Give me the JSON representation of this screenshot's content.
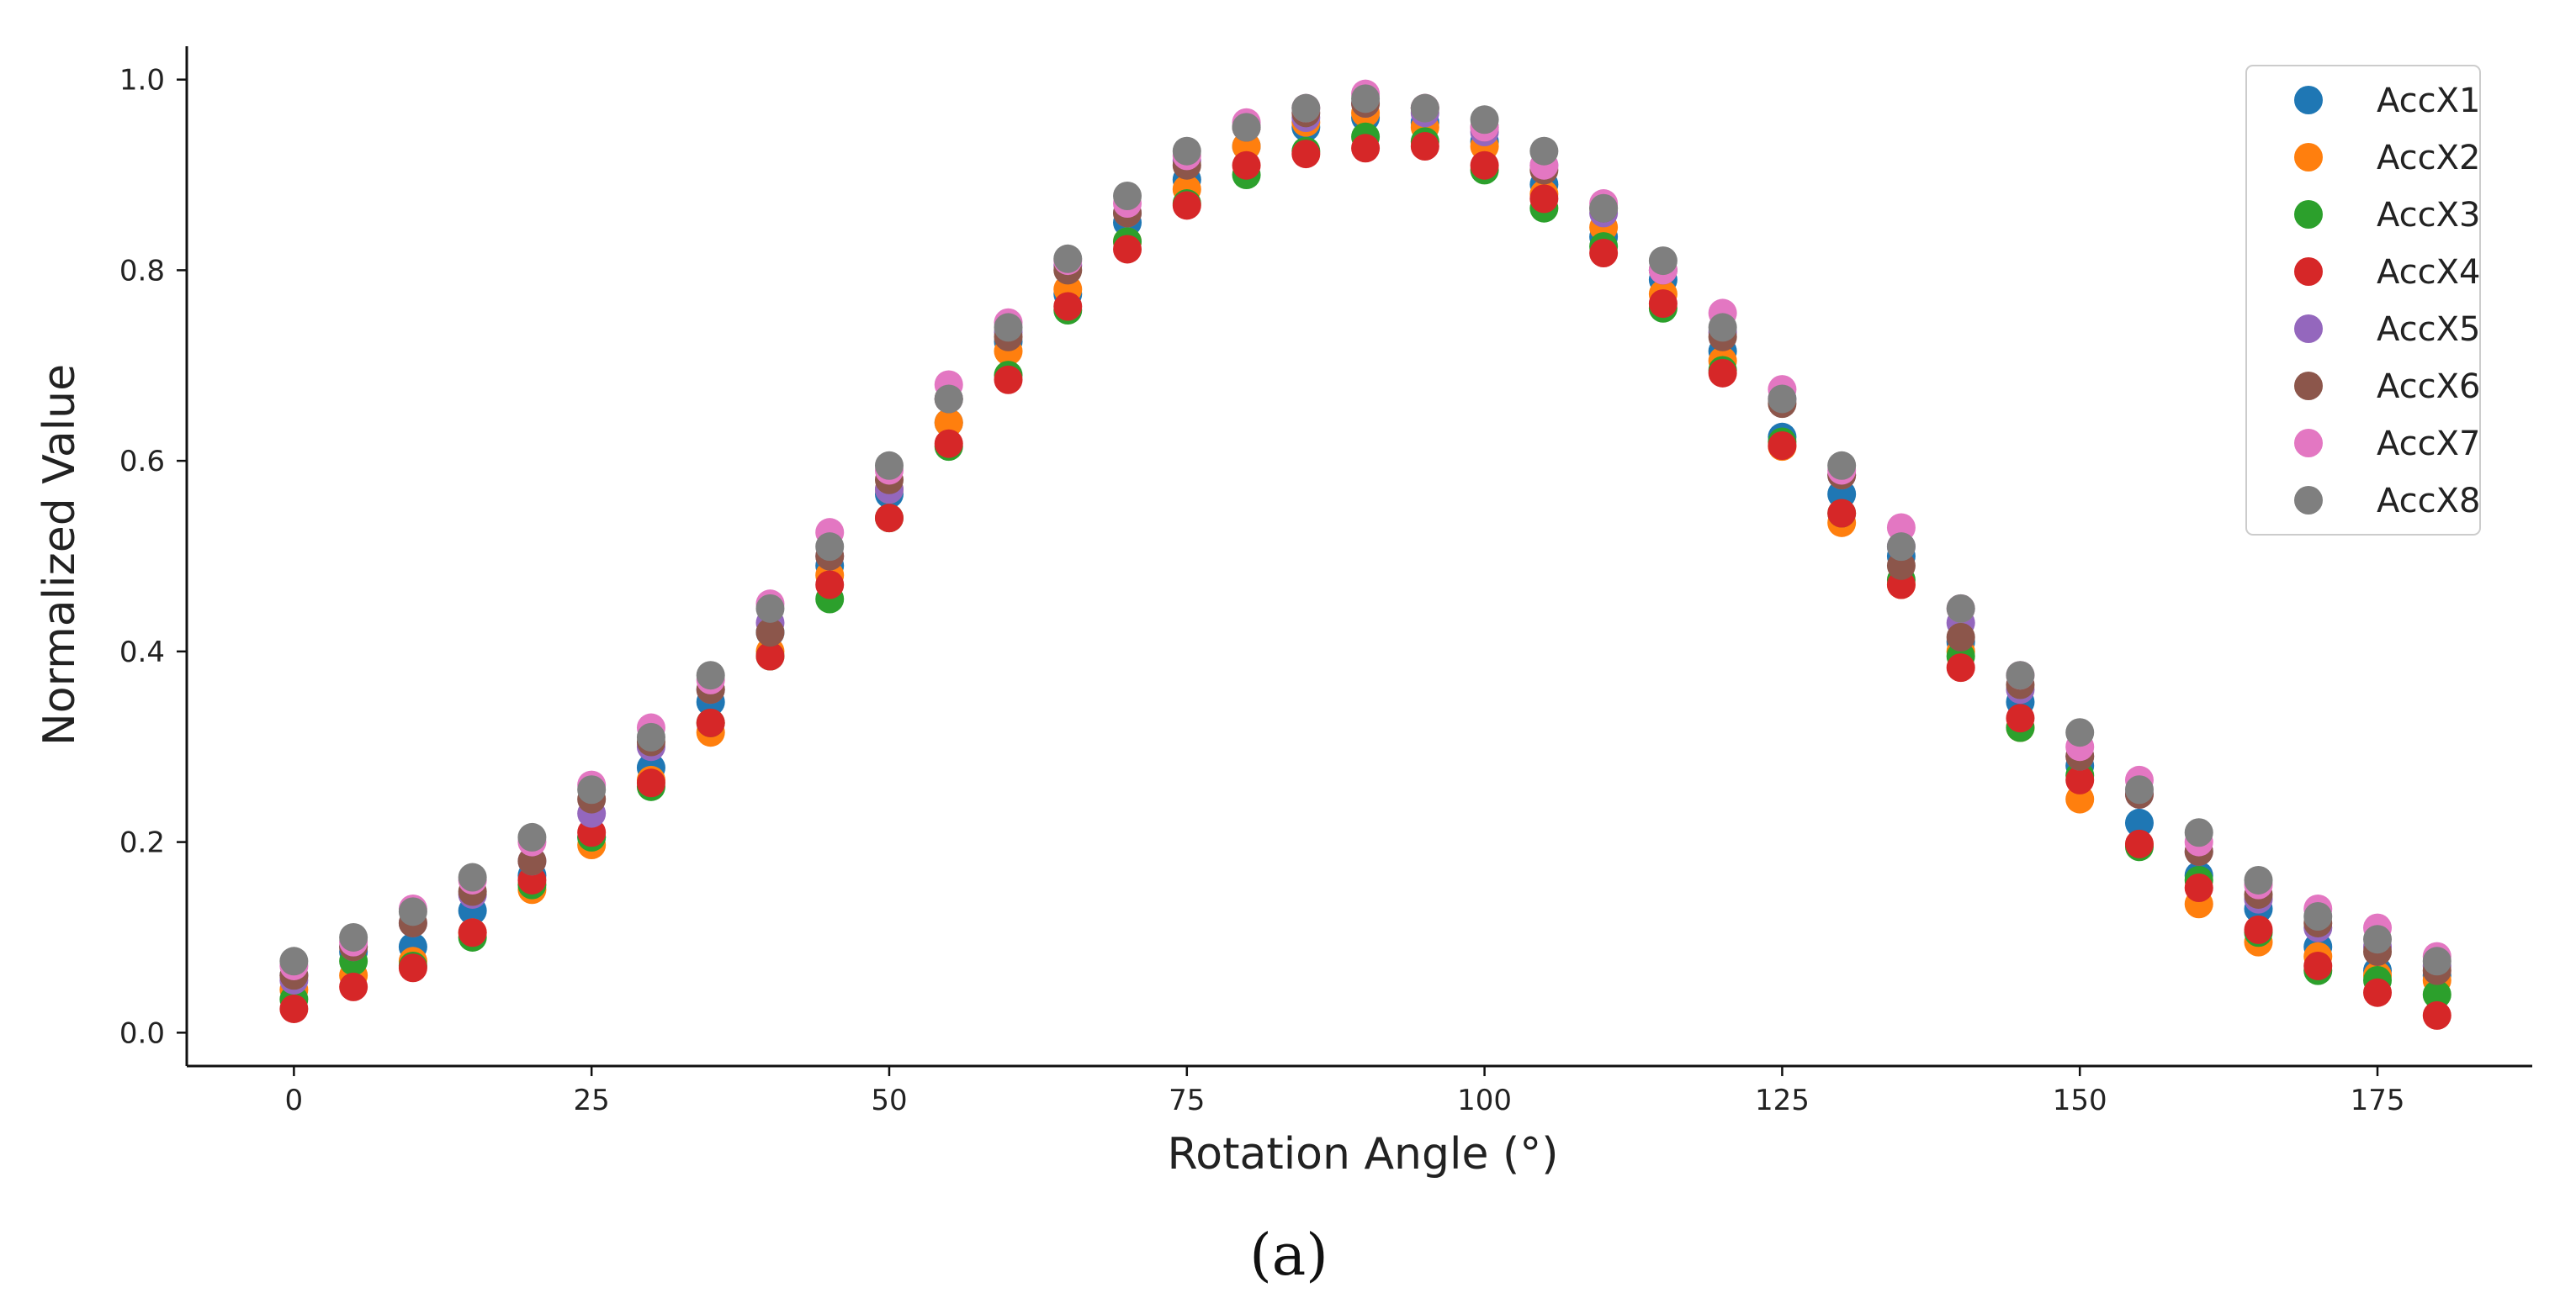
{
  "chart_data": {
    "type": "scatter",
    "xlabel": "Rotation Angle (°)",
    "ylabel": "Normalized Value",
    "caption": "(a)",
    "xlim": [
      -9,
      188
    ],
    "ylim": [
      -0.035,
      1.035
    ],
    "xticks": [
      0,
      25,
      50,
      75,
      100,
      125,
      150,
      175
    ],
    "yticks": [
      0.0,
      0.2,
      0.4,
      0.6,
      0.8,
      1.0
    ],
    "ytick_labels": [
      "0.0",
      "0.2",
      "0.4",
      "0.6",
      "0.8",
      "1.0"
    ],
    "grid": false,
    "legend_position": "top-right",
    "x": [
      0,
      5,
      10,
      15,
      20,
      25,
      30,
      35,
      40,
      45,
      50,
      55,
      60,
      65,
      70,
      75,
      80,
      85,
      90,
      95,
      100,
      105,
      110,
      115,
      120,
      125,
      130,
      135,
      140,
      145,
      150,
      155,
      160,
      165,
      170,
      175,
      180
    ],
    "series": [
      {
        "name": "AccX1",
        "color": "#1f77b4",
        "values": [
          0.06,
          0.085,
          0.09,
          0.128,
          0.165,
          0.205,
          0.278,
          0.347,
          0.42,
          0.49,
          0.565,
          0.64,
          0.725,
          0.775,
          0.85,
          0.895,
          0.93,
          0.95,
          0.96,
          0.955,
          0.935,
          0.89,
          0.835,
          0.79,
          0.715,
          0.625,
          0.565,
          0.5,
          0.41,
          0.347,
          0.28,
          0.22,
          0.165,
          0.13,
          0.09,
          0.065,
          0.06
        ]
      },
      {
        "name": "AccX2",
        "color": "#ff7f0e",
        "values": [
          0.045,
          0.06,
          0.075,
          0.105,
          0.15,
          0.197,
          0.265,
          0.315,
          0.4,
          0.48,
          0.57,
          0.64,
          0.715,
          0.78,
          0.83,
          0.885,
          0.93,
          0.955,
          0.965,
          0.95,
          0.93,
          0.88,
          0.845,
          0.775,
          0.705,
          0.615,
          0.535,
          0.47,
          0.4,
          0.32,
          0.245,
          0.197,
          0.135,
          0.095,
          0.08,
          0.06,
          0.055
        ]
      },
      {
        "name": "AccX3",
        "color": "#2ca02c",
        "values": [
          0.035,
          0.075,
          0.07,
          0.1,
          0.155,
          0.205,
          0.258,
          0.325,
          0.395,
          0.455,
          0.54,
          0.615,
          0.69,
          0.758,
          0.83,
          0.87,
          0.9,
          0.925,
          0.94,
          0.935,
          0.905,
          0.865,
          0.825,
          0.76,
          0.695,
          0.62,
          0.545,
          0.475,
          0.395,
          0.32,
          0.27,
          0.195,
          0.16,
          0.105,
          0.065,
          0.055,
          0.04
        ]
      },
      {
        "name": "AccX4",
        "color": "#d62728",
        "values": [
          0.025,
          0.048,
          0.068,
          0.105,
          0.16,
          0.21,
          0.262,
          0.325,
          0.395,
          0.47,
          0.54,
          0.618,
          0.685,
          0.762,
          0.822,
          0.868,
          0.91,
          0.922,
          0.928,
          0.93,
          0.91,
          0.875,
          0.818,
          0.765,
          0.692,
          0.616,
          0.545,
          0.47,
          0.383,
          0.33,
          0.265,
          0.198,
          0.152,
          0.108,
          0.07,
          0.042,
          0.018
        ]
      },
      {
        "name": "AccX5",
        "color": "#9467bd",
        "values": [
          0.055,
          0.09,
          0.115,
          0.145,
          0.18,
          0.23,
          0.3,
          0.36,
          0.43,
          0.5,
          0.57,
          0.665,
          0.735,
          0.805,
          0.86,
          0.915,
          0.95,
          0.96,
          0.975,
          0.965,
          0.945,
          0.91,
          0.86,
          0.8,
          0.735,
          0.665,
          0.585,
          0.51,
          0.43,
          0.36,
          0.29,
          0.25,
          0.19,
          0.14,
          0.11,
          0.09,
          0.07
        ]
      },
      {
        "name": "AccX6",
        "color": "#8c564b",
        "values": [
          0.06,
          0.09,
          0.115,
          0.148,
          0.18,
          0.245,
          0.305,
          0.36,
          0.42,
          0.5,
          0.58,
          0.665,
          0.73,
          0.8,
          0.86,
          0.91,
          0.95,
          0.965,
          0.975,
          0.97,
          0.95,
          0.905,
          0.865,
          0.8,
          0.73,
          0.66,
          0.585,
          0.49,
          0.415,
          0.365,
          0.29,
          0.25,
          0.19,
          0.145,
          0.115,
          0.085,
          0.065
        ]
      },
      {
        "name": "AccX7",
        "color": "#e377c2",
        "values": [
          0.07,
          0.095,
          0.13,
          0.16,
          0.2,
          0.26,
          0.32,
          0.37,
          0.45,
          0.525,
          0.59,
          0.68,
          0.745,
          0.81,
          0.87,
          0.92,
          0.955,
          0.97,
          0.985,
          0.97,
          0.95,
          0.91,
          0.87,
          0.8,
          0.755,
          0.675,
          0.59,
          0.53,
          0.445,
          0.375,
          0.3,
          0.265,
          0.2,
          0.155,
          0.13,
          0.11,
          0.08
        ]
      },
      {
        "name": "AccX8",
        "color": "#7f7f7f",
        "values": [
          0.075,
          0.1,
          0.127,
          0.163,
          0.205,
          0.255,
          0.31,
          0.375,
          0.445,
          0.51,
          0.595,
          0.665,
          0.74,
          0.812,
          0.878,
          0.925,
          0.95,
          0.97,
          0.98,
          0.97,
          0.958,
          0.925,
          0.865,
          0.81,
          0.74,
          0.665,
          0.595,
          0.51,
          0.445,
          0.375,
          0.315,
          0.255,
          0.21,
          0.16,
          0.122,
          0.098,
          0.075
        ]
      }
    ]
  }
}
